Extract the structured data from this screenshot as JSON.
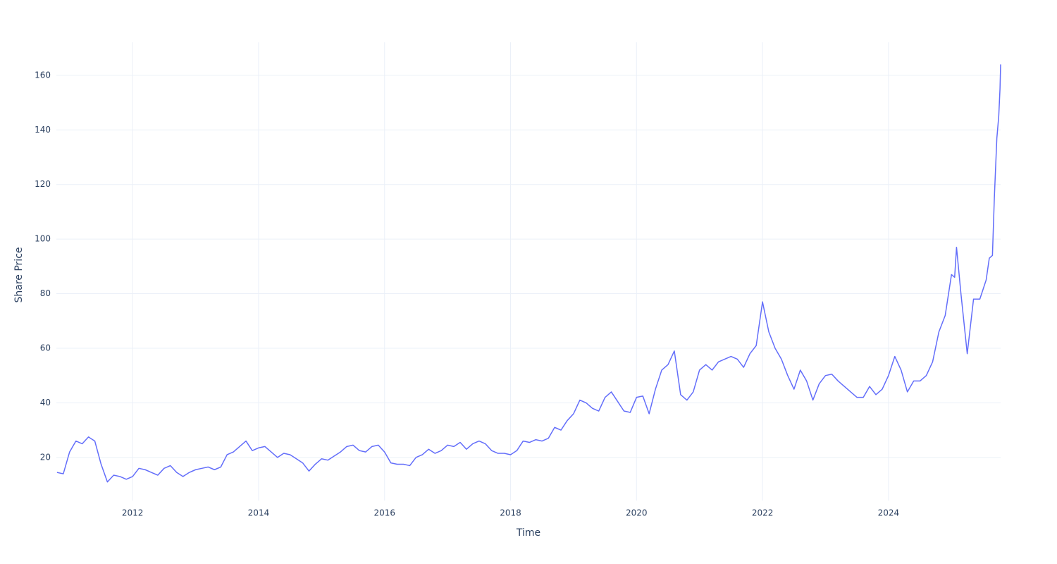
{
  "chart_data": {
    "type": "line",
    "x_label": "Time",
    "y_label": "Share Price",
    "x": [
      2010.8,
      2010.9,
      2011.0,
      2011.1,
      2011.2,
      2011.3,
      2011.4,
      2011.5,
      2011.6,
      2011.7,
      2011.8,
      2011.9,
      2012.0,
      2012.1,
      2012.2,
      2012.3,
      2012.4,
      2012.5,
      2012.6,
      2012.7,
      2012.8,
      2012.9,
      2013.0,
      2013.1,
      2013.2,
      2013.3,
      2013.4,
      2013.5,
      2013.6,
      2013.7,
      2013.8,
      2013.9,
      2014.0,
      2014.1,
      2014.2,
      2014.3,
      2014.4,
      2014.5,
      2014.6,
      2014.7,
      2014.8,
      2014.9,
      2015.0,
      2015.1,
      2015.2,
      2015.3,
      2015.4,
      2015.5,
      2015.6,
      2015.7,
      2015.8,
      2015.9,
      2016.0,
      2016.1,
      2016.2,
      2016.3,
      2016.4,
      2016.5,
      2016.6,
      2016.7,
      2016.8,
      2016.9,
      2017.0,
      2017.1,
      2017.2,
      2017.3,
      2017.4,
      2017.5,
      2017.6,
      2017.7,
      2017.8,
      2017.9,
      2018.0,
      2018.1,
      2018.2,
      2018.3,
      2018.4,
      2018.5,
      2018.6,
      2018.7,
      2018.8,
      2018.9,
      2019.0,
      2019.1,
      2019.2,
      2019.3,
      2019.4,
      2019.5,
      2019.6,
      2019.7,
      2019.8,
      2019.9,
      2020.0,
      2020.1,
      2020.2,
      2020.3,
      2020.4,
      2020.5,
      2020.6,
      2020.7,
      2020.8,
      2020.9,
      2021.0,
      2021.1,
      2021.2,
      2021.3,
      2021.4,
      2021.5,
      2021.6,
      2021.7,
      2021.8,
      2021.9,
      2022.0,
      2022.1,
      2022.2,
      2022.3,
      2022.4,
      2022.5,
      2022.6,
      2022.7,
      2022.8,
      2022.9,
      2023.0,
      2023.1,
      2023.2,
      2023.3,
      2023.4,
      2023.5,
      2023.6,
      2023.7,
      2023.8,
      2023.9,
      2024.0,
      2024.1,
      2024.2,
      2024.3,
      2024.4,
      2024.5,
      2024.6,
      2024.7,
      2024.8,
      2024.9,
      2025.0,
      2025.05,
      2025.08,
      2025.15,
      2025.25,
      2025.35,
      2025.45,
      2025.55,
      2025.6,
      2025.65,
      2025.68,
      2025.72,
      2025.75,
      2025.77,
      2025.78
    ],
    "series": [
      {
        "name": "Share Price",
        "color": "#636efa",
        "values": [
          14.5,
          14,
          22,
          26,
          25,
          27.5,
          26,
          17.5,
          11,
          13.5,
          13,
          12,
          13,
          16,
          15.5,
          14.5,
          13.5,
          16,
          17,
          14.5,
          13,
          14.5,
          15.5,
          16,
          16.5,
          15.5,
          16.5,
          21,
          22,
          24,
          26,
          22.5,
          23.5,
          24,
          22,
          20,
          21.5,
          21,
          19.5,
          18,
          15,
          17.5,
          19.5,
          19,
          20.5,
          22,
          24,
          24.5,
          22.5,
          22,
          24,
          24.5,
          22,
          18,
          17.5,
          17.5,
          17,
          20,
          21,
          23,
          21.5,
          22.5,
          24.5,
          24,
          25.5,
          23,
          25,
          26,
          25,
          22.5,
          21.5,
          21.5,
          21,
          22.5,
          26,
          25.5,
          26.5,
          26,
          27,
          31,
          30,
          33.5,
          36,
          41,
          40,
          38,
          37,
          42,
          44,
          40.5,
          37,
          36.5,
          42,
          42.5,
          36,
          45,
          52,
          54,
          59,
          43,
          41,
          44,
          52,
          54,
          52,
          55,
          56,
          57,
          56,
          53,
          58,
          61,
          77,
          66,
          60,
          56,
          50,
          45,
          52,
          48,
          41,
          47,
          50,
          50.5,
          48,
          46,
          44,
          42,
          42,
          46,
          43,
          45,
          50,
          57,
          52,
          44,
          48,
          48,
          50,
          55,
          66,
          72,
          87,
          86,
          97,
          80,
          58,
          78,
          78,
          85,
          93,
          94,
          115,
          137,
          145,
          155,
          164
        ]
      }
    ],
    "xlim": [
      2010.79,
      2025.78
    ],
    "xticks": [
      2012,
      2014,
      2016,
      2018,
      2020,
      2022,
      2024
    ],
    "ylim": [
      4.2,
      172.1
    ],
    "yticks": [
      20,
      40,
      60,
      80,
      100,
      120,
      140,
      160
    ],
    "grid": true
  }
}
